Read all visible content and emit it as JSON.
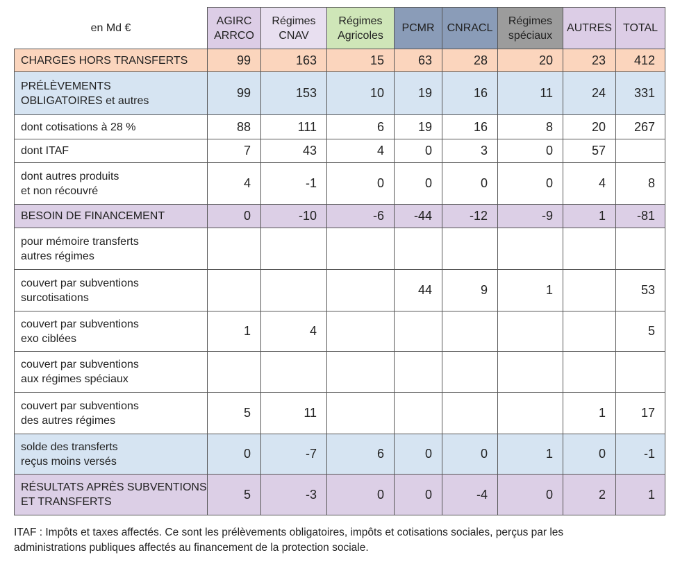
{
  "table": {
    "unit_label": "en Md €",
    "columns": [
      {
        "lines": [
          "AGIRC",
          "ARRCO"
        ],
        "color": "#dccde6"
      },
      {
        "lines": [
          "Régimes",
          "CNAV"
        ],
        "color": "#e8dff0"
      },
      {
        "lines": [
          "Régimes",
          "Agricoles"
        ],
        "color": "#cfe6b8"
      },
      {
        "lines": [
          "PCMR"
        ],
        "color": "#8a9cb8"
      },
      {
        "lines": [
          "CNRACL"
        ],
        "color": "#8a9cb8"
      },
      {
        "lines": [
          "Régimes",
          "spéciaux"
        ],
        "color": "#9c9c9c"
      },
      {
        "lines": [
          "AUTRES"
        ],
        "color": "#dccde6"
      },
      {
        "lines": [
          "TOTAL"
        ],
        "color": "#dccde6"
      }
    ],
    "rows": [
      {
        "label": [
          "CHARGES HORS TRANSFERTS"
        ],
        "color": "#fbd5bd",
        "cells": [
          "99",
          "163",
          "15",
          "63",
          "28",
          "20",
          "23",
          "412"
        ]
      },
      {
        "label": [
          "PRÉLÈVEMENTS",
          "OBLIGATOIRES et autres"
        ],
        "color": "#d6e4f2",
        "cells": [
          "99",
          "153",
          "10",
          "19",
          "16",
          "11",
          "24",
          "331"
        ]
      },
      {
        "label": [
          "dont cotisations à 28 %"
        ],
        "cells": [
          "88",
          "111",
          "6",
          "19",
          "16",
          "8",
          "20",
          "267"
        ]
      },
      {
        "label": [
          "dont ITAF"
        ],
        "cells": [
          "7",
          "43",
          "4",
          "0",
          "3",
          "0",
          "57",
          null
        ]
      },
      {
        "label": [
          "dont autres produits",
          "et non récouvré"
        ],
        "cells": [
          "4",
          "-1",
          "0",
          "0",
          "0",
          "0",
          "4",
          "8"
        ]
      },
      {
        "label": [
          "BESOIN DE FINANCEMENT"
        ],
        "color": "#dccfe6",
        "cells": [
          "0",
          "-10",
          "-6",
          "-44",
          "-12",
          "-9",
          "1",
          "-81"
        ]
      },
      {
        "label": [
          "pour mémoire transferts",
          "autres régimes"
        ],
        "cells": [
          null,
          null,
          null,
          null,
          null,
          null,
          null,
          null
        ]
      },
      {
        "label": [
          "couvert par subventions",
          "surcotisations"
        ],
        "cells": [
          null,
          null,
          null,
          "44",
          "9",
          "1",
          null,
          "53"
        ]
      },
      {
        "label": [
          "couvert par subventions",
          "exo ciblées"
        ],
        "cells": [
          "1",
          "4",
          null,
          null,
          null,
          null,
          null,
          "5"
        ]
      },
      {
        "label": [
          "couvert par subventions",
          "aux régimes spéciaux"
        ],
        "cells": [
          null,
          null,
          null,
          null,
          null,
          null,
          null,
          null
        ]
      },
      {
        "label": [
          "couvert par subventions",
          "des autres régimes"
        ],
        "cells": [
          "5",
          "11",
          null,
          null,
          null,
          null,
          "1",
          "17"
        ]
      },
      {
        "label": [
          "solde des transferts",
          "reçus moins versés"
        ],
        "color": "#d6e4f2",
        "cells": [
          "0",
          "-7",
          "6",
          "0",
          "0",
          "1",
          "0",
          "-1"
        ]
      },
      {
        "label": [
          "RÉSULTATS APRÈS SUBVENTIONS",
          "ET TRANSFERTS"
        ],
        "color": "#dccfe6",
        "cells": [
          "5",
          "-3",
          "0",
          "0",
          "-4",
          "0",
          "2",
          "1"
        ]
      }
    ],
    "footnote": [
      "ITAF : Impôts et taxes affectés. Ce sont les prélèvements obligatoires, impôts et cotisations sociales, perçus par les",
      "administrations publiques affectés au financement de la protection sociale."
    ]
  }
}
